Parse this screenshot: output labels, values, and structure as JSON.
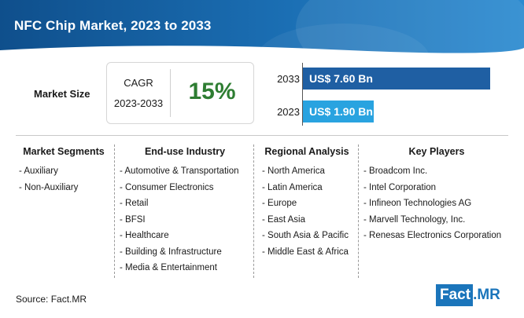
{
  "header": {
    "title": "NFC Chip Market, 2023 to 2033"
  },
  "market_size": {
    "label": "Market Size",
    "cagr_label": "CAGR",
    "cagr_period": "2023-2033",
    "cagr_value": "15%"
  },
  "colors": {
    "bar_2033": "#1f5fa3",
    "bar_2023": "#29a3e0",
    "cagr_green": "#2e7d32",
    "header_blue": "#1b6fb4"
  },
  "chart_data": {
    "type": "bar",
    "orientation": "horizontal",
    "categories": [
      "2033",
      "2023"
    ],
    "values": [
      7.6,
      1.9
    ],
    "value_labels": [
      "US$ 7.60 Bn",
      "US$ 1.90 Bn"
    ],
    "unit": "US$ Bn",
    "xlim": [
      0,
      7.6
    ]
  },
  "columns": [
    {
      "heading": "Market Segments",
      "items": [
        "- Auxiliary",
        "- Non-Auxiliary"
      ]
    },
    {
      "heading": "End-use Industry",
      "items": [
        "- Automotive & Transportation",
        "- Consumer Electronics",
        "- Retail",
        "- BFSI",
        "- Healthcare",
        "- Building & Infrastructure",
        "- Media & Entertainment"
      ]
    },
    {
      "heading": "Regional Analysis",
      "items": [
        "- North America",
        "- Latin America",
        "- Europe",
        "- East Asia",
        "- South Asia & Pacific",
        "- Middle East & Africa"
      ]
    },
    {
      "heading": "Key Players",
      "items": [
        "- Broadcom Inc.",
        "- Intel Corporation",
        "- Infineon Technologies AG",
        "- Marvell Technology, Inc.",
        "- Renesas Electronics Corporation"
      ]
    }
  ],
  "footer": {
    "source": "Source: Fact.MR",
    "logo_fact": "Fact",
    "logo_dot": ".",
    "logo_mr": "MR"
  }
}
